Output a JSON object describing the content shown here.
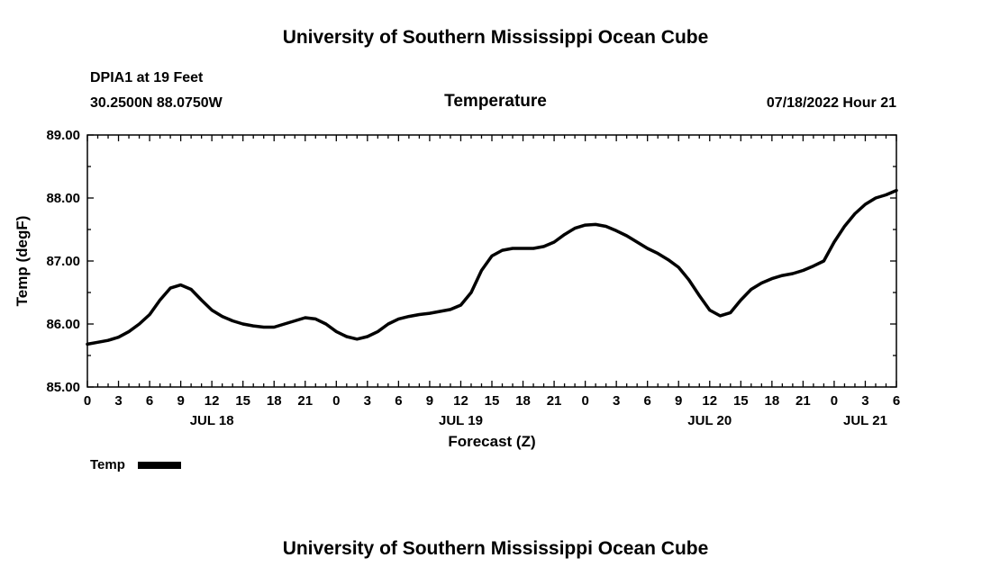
{
  "header": {
    "title": "University of Southern Mississippi Ocean Cube",
    "station_line1": "DPIA1 at 19 Feet",
    "station_line2": "30.2500N  88.0750W",
    "plot_title": "Temperature",
    "run_label": "07/18/2022 Hour 21"
  },
  "legend": {
    "label": "Temp",
    "color": "#000000"
  },
  "footer": {
    "title": "University of Southern Mississippi Ocean Cube"
  },
  "chart_data": {
    "type": "line",
    "title": "Temperature",
    "xlabel": "Forecast (Z)",
    "ylabel": "Temp (degF)",
    "ylim": [
      85.0,
      89.0
    ],
    "yticks": [
      85,
      86,
      87,
      88,
      89
    ],
    "ytick_labels": [
      "85.00",
      "86.00",
      "87.00",
      "88.00",
      "89.00"
    ],
    "x_hours_range": [
      0,
      78
    ],
    "xtick_step": 3,
    "xtick_label_cycle": [
      "0",
      "3",
      "6",
      "9",
      "12",
      "15",
      "18",
      "21"
    ],
    "day_labels": [
      {
        "label": "JUL 18",
        "hour": 12
      },
      {
        "label": "JUL 19",
        "hour": 36
      },
      {
        "label": "JUL 20",
        "hour": 60
      },
      {
        "label": "JUL 21",
        "hour": 75
      }
    ],
    "grid": false,
    "legend_position": "bottom-left",
    "line_color": "#000000",
    "series": [
      {
        "name": "Temp",
        "color": "#000000",
        "x": [
          0,
          1,
          2,
          3,
          4,
          5,
          6,
          7,
          8,
          9,
          10,
          11,
          12,
          13,
          14,
          15,
          16,
          17,
          18,
          19,
          20,
          21,
          22,
          23,
          24,
          25,
          26,
          27,
          28,
          29,
          30,
          31,
          32,
          33,
          34,
          35,
          36,
          37,
          38,
          39,
          40,
          41,
          42,
          43,
          44,
          45,
          46,
          47,
          48,
          49,
          50,
          51,
          52,
          53,
          54,
          55,
          56,
          57,
          58,
          59,
          60,
          61,
          62,
          63,
          64,
          65,
          66,
          67,
          68,
          69,
          70,
          71,
          72,
          73,
          74,
          75,
          76,
          77,
          78
        ],
        "y": [
          85.68,
          85.71,
          85.74,
          85.79,
          85.88,
          86.0,
          86.15,
          86.38,
          86.57,
          86.62,
          86.55,
          86.38,
          86.22,
          86.12,
          86.05,
          86.0,
          85.97,
          85.95,
          85.95,
          86.0,
          86.05,
          86.1,
          86.08,
          86.0,
          85.88,
          85.8,
          85.76,
          85.8,
          85.88,
          86.0,
          86.08,
          86.12,
          86.15,
          86.17,
          86.2,
          86.23,
          86.3,
          86.5,
          86.85,
          87.08,
          87.17,
          87.2,
          87.2,
          87.2,
          87.23,
          87.3,
          87.42,
          87.52,
          87.57,
          87.58,
          87.55,
          87.48,
          87.4,
          87.3,
          87.2,
          87.12,
          87.02,
          86.9,
          86.7,
          86.45,
          86.22,
          86.13,
          86.18,
          86.38,
          86.55,
          86.65,
          86.72,
          86.77,
          86.8,
          86.85,
          86.92,
          87.0,
          87.3,
          87.55,
          87.75,
          87.9,
          88.0,
          88.05,
          88.12
        ]
      }
    ]
  }
}
